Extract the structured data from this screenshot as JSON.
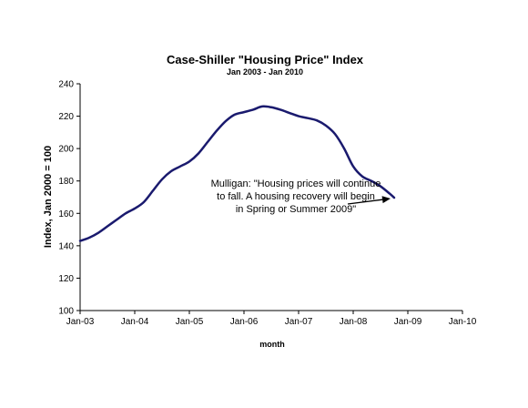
{
  "chart_data": {
    "type": "line",
    "title": "Case-Shiller \"Housing Price\" Index",
    "subtitle": "Jan 2003 - Jan 2010",
    "xlabel": "month",
    "ylabel": "Index, Jan 2000 = 100",
    "ylim": [
      100,
      240
    ],
    "yticks": [
      100,
      120,
      140,
      160,
      180,
      200,
      220,
      240
    ],
    "xlim": [
      "2003-01",
      "2010-01"
    ],
    "xticks": [
      "2003-01",
      "2004-01",
      "2005-01",
      "2006-01",
      "2007-01",
      "2008-01",
      "2009-01",
      "2010-01"
    ],
    "xtick_labels": [
      "Jan-03",
      "Jan-04",
      "Jan-05",
      "Jan-06",
      "Jan-07",
      "Jan-08",
      "Jan-09",
      "Jan-10"
    ],
    "grid": false,
    "legend": false,
    "line_color": "#1a1a6e",
    "series": [
      {
        "x": [
          "2003-01",
          "2003-03",
          "2003-05",
          "2003-07",
          "2003-09",
          "2003-11",
          "2004-01",
          "2004-03",
          "2004-05",
          "2004-07",
          "2004-09",
          "2004-11",
          "2005-01",
          "2005-03",
          "2005-05",
          "2005-07",
          "2005-09",
          "2005-11",
          "2006-01",
          "2006-03",
          "2006-05",
          "2006-07",
          "2006-09",
          "2006-11",
          "2007-01",
          "2007-03",
          "2007-05",
          "2007-07",
          "2007-09",
          "2007-11",
          "2008-01",
          "2008-03",
          "2008-05",
          "2008-07",
          "2008-09",
          "2008-10"
        ],
        "values": [
          143,
          145,
          148,
          152,
          156,
          160,
          163,
          167,
          174,
          181,
          186,
          189,
          192,
          197,
          204,
          211,
          217,
          221,
          222.5,
          224,
          226,
          225.5,
          224,
          222,
          220,
          218.8,
          217.4,
          214.2,
          209,
          200.1,
          189,
          182.8,
          180,
          176.7,
          172.2,
          169.7
        ]
      }
    ],
    "annotation": {
      "lines": [
        "Mulligan: \"Housing prices will continue",
        "to fall.  A housing recovery will begin",
        "in Spring or Summer 2009\""
      ],
      "points_to": {
        "x": "2008-10",
        "y": 169.7
      }
    }
  }
}
